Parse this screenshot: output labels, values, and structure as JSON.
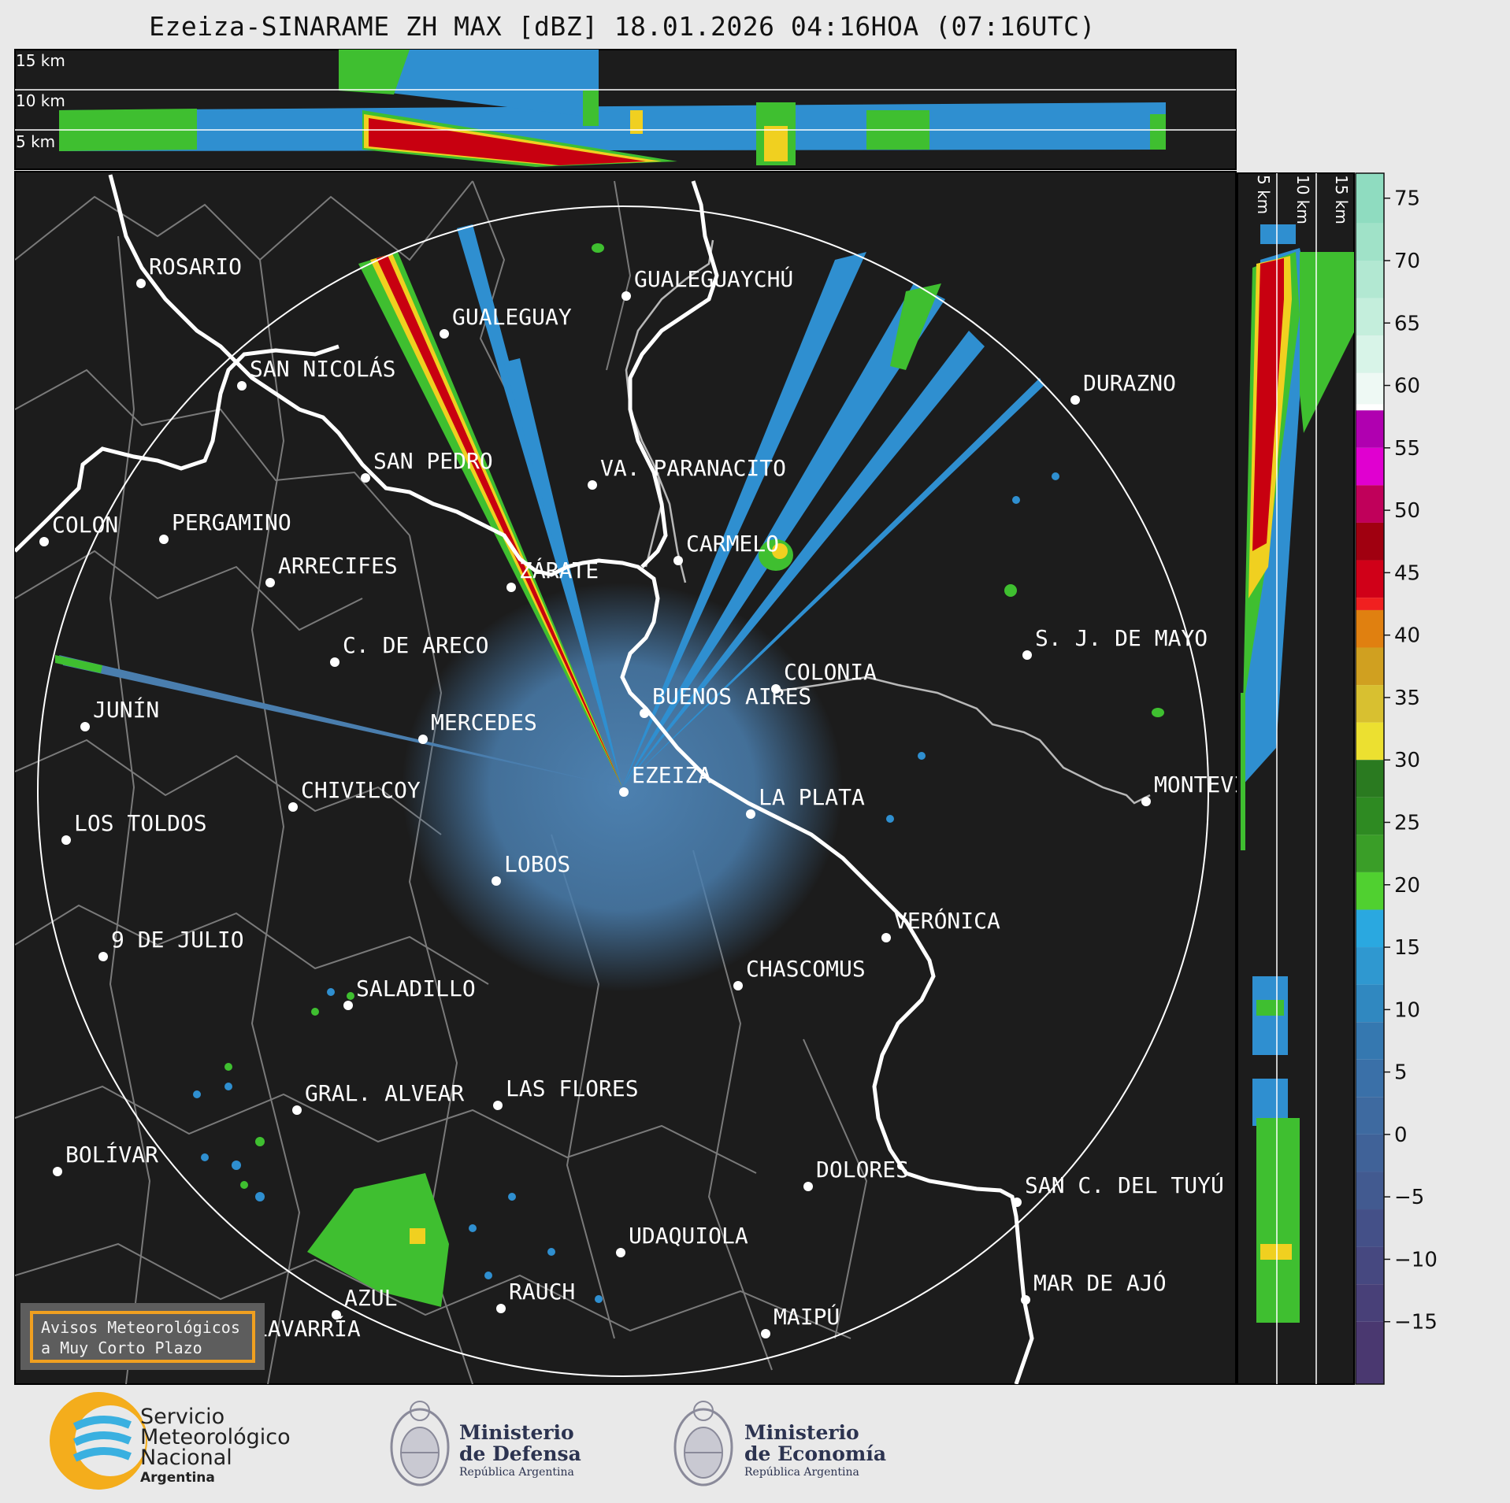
{
  "title": "Ezeiza-SINARAME ZH MAX [dBZ] 18.01.2026 04:16HOA (07:16UTC)",
  "vertical_section_top": {
    "height_labels": [
      "15 km",
      "10 km",
      "5 km"
    ]
  },
  "vertical_section_right": {
    "height_labels": [
      "5 km",
      "10 km",
      "15 km"
    ]
  },
  "colorbar": {
    "unit": "dBZ",
    "tick_labels": [
      "75",
      "70",
      "65",
      "60",
      "55",
      "50",
      "45",
      "40",
      "35",
      "30",
      "25",
      "20",
      "15",
      "10",
      "5",
      "0",
      "−5",
      "−10",
      "−15"
    ],
    "color_stops": [
      {
        "from": 58.5,
        "to": 77,
        "color": "#8fdcc0"
      },
      {
        "from": 58.5,
        "to": 60,
        "color": "#ffffff"
      },
      {
        "from": 49,
        "to": 58.5,
        "color": "#c000a0"
      },
      {
        "from": 42,
        "to": 49,
        "color": "#c00010"
      },
      {
        "from": 30,
        "to": 42,
        "color": "#e0c020"
      },
      {
        "from": 18,
        "to": 30,
        "color": "#2a8a20"
      },
      {
        "from": -20,
        "to": 18,
        "color": "#3070b0"
      }
    ]
  },
  "map": {
    "background": "#1c1c1c",
    "range_ring": "240 km",
    "radar_site": "EZEIZA",
    "cities": [
      {
        "name": "ROSARIO"
      },
      {
        "name": "GUALEGUAYCHÚ"
      },
      {
        "name": "GUALEGUAY"
      },
      {
        "name": "SAN NICOLÁS"
      },
      {
        "name": "DURAZNO"
      },
      {
        "name": "SAN PEDRO"
      },
      {
        "name": "VA. PARANACITO"
      },
      {
        "name": "COLON"
      },
      {
        "name": "PERGAMINO"
      },
      {
        "name": "CARMELO"
      },
      {
        "name": "ARRECIFES"
      },
      {
        "name": "ZÁRATE"
      },
      {
        "name": "S. J. DE MAYO"
      },
      {
        "name": "C. DE ARECO"
      },
      {
        "name": "COLONIA"
      },
      {
        "name": "JUNÍN"
      },
      {
        "name": "BUENOS AIRES"
      },
      {
        "name": "MERCEDES"
      },
      {
        "name": "MONTEVIDEO"
      },
      {
        "name": "EZEIZA"
      },
      {
        "name": "CHIVILCOY"
      },
      {
        "name": "LA PLATA"
      },
      {
        "name": "LOS TOLDOS"
      },
      {
        "name": "LOBOS"
      },
      {
        "name": "VERÓNICA"
      },
      {
        "name": "9 DE JULIO"
      },
      {
        "name": "CHASCOMUS"
      },
      {
        "name": "SALADILLO"
      },
      {
        "name": "GRAL. ALVEAR"
      },
      {
        "name": "LAS FLORES"
      },
      {
        "name": "BOLÍVAR"
      },
      {
        "name": "DOLORES"
      },
      {
        "name": "SAN C. DEL TUYÚ"
      },
      {
        "name": "UDAQUIOLA"
      },
      {
        "name": "MAR DE AJÓ"
      },
      {
        "name": "AZUL"
      },
      {
        "name": "RAUCH"
      },
      {
        "name": "OLAVARRÍA"
      },
      {
        "name": "MAIPÚ"
      }
    ]
  },
  "notice": {
    "line1": "Avisos Meteorológicos",
    "line2": "a Muy Corto Plazo"
  },
  "logos": {
    "smn": {
      "line1": "Servicio",
      "line2": "Meteorológico",
      "line3": "Nacional",
      "line4": "Argentina"
    },
    "defensa": {
      "line1": "Ministerio",
      "line2": "de Defensa",
      "line3": "República Argentina"
    },
    "economia": {
      "line1": "Ministerio",
      "line2": "de Economía",
      "line3": "República Argentina"
    }
  }
}
